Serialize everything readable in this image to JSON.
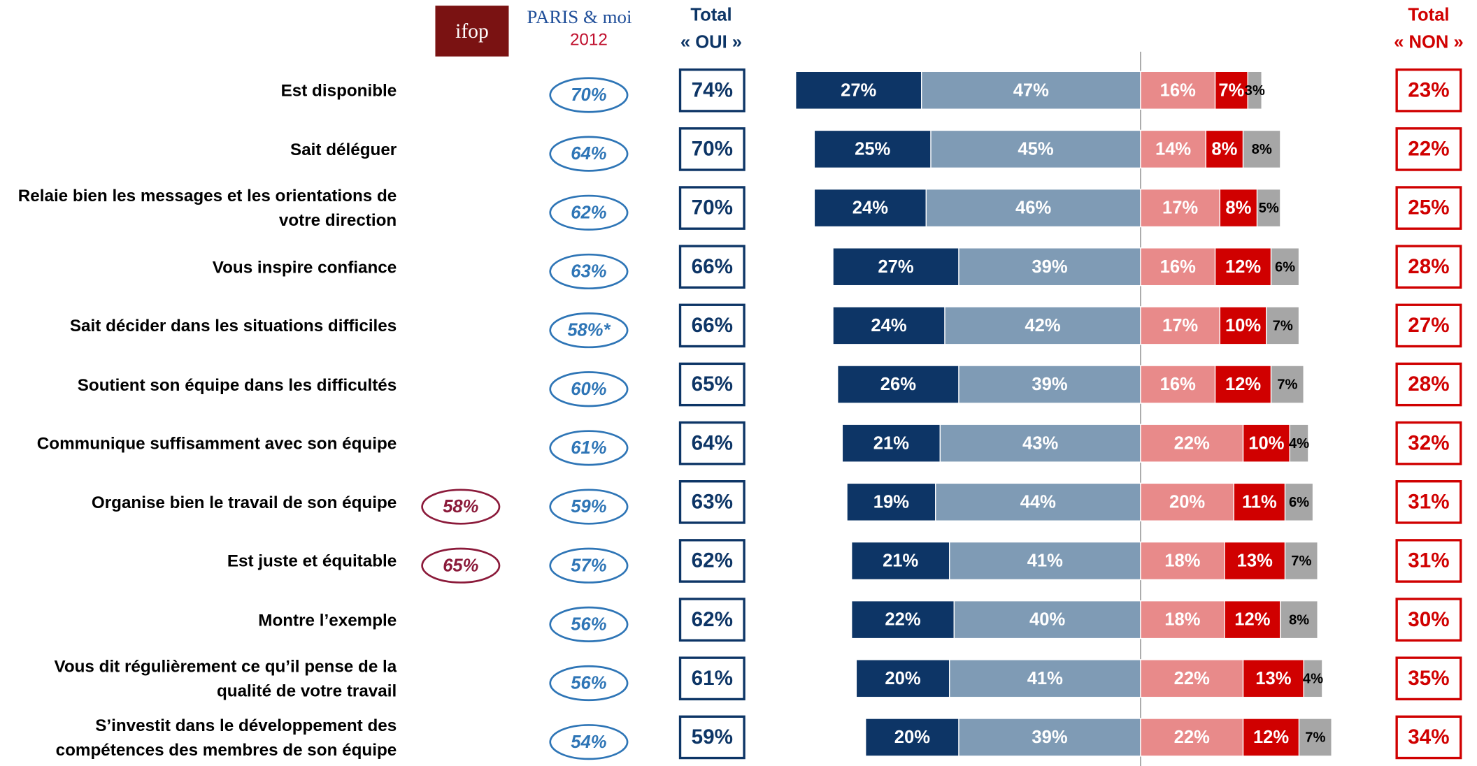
{
  "chart_data": {
    "type": "diverging_bar",
    "logo_ifop": "ifop",
    "logo_paris": "PARIS & moi",
    "logo_year": "2012",
    "total_oui_title": "Total",
    "total_oui_sub": "« OUI »",
    "total_non_title": "Total",
    "total_non_sub": "« NON »",
    "categories": [
      "Est disponible",
      "Sait déléguer",
      "Relaie bien les messages et les orientations de votre direction",
      "Vous inspire confiance",
      "Sait décider dans les situations difficiles",
      "Soutient son équipe dans les difficultés",
      "Communique suffisamment avec son équipe",
      "Organise bien le travail de son équipe",
      "Est juste et équitable",
      "Montre l’exemple",
      "Vous dit régulièrement ce qu’il pense de la qualité de votre travail",
      "S’investit dans le développement des compétences des membres de son équipe"
    ],
    "ifop": {
      "color": "#8b1a3a",
      "values": [
        null,
        null,
        null,
        null,
        null,
        null,
        null,
        58,
        65,
        null,
        null,
        null
      ],
      "value_labels": [
        null,
        null,
        null,
        null,
        null,
        null,
        null,
        "58%",
        "65%",
        null,
        null,
        null
      ]
    },
    "paris_2012": {
      "color": "#2e75b6",
      "values": [
        70,
        64,
        62,
        63,
        58,
        60,
        61,
        59,
        57,
        56,
        56,
        54
      ],
      "value_labels": [
        "70%",
        "64%",
        "62%",
        "63%",
        "58%*",
        "60%",
        "61%",
        "59%",
        "57%",
        "56%",
        "56%",
        "54%"
      ]
    },
    "total_oui": {
      "color": "#0d3566",
      "values": [
        74,
        70,
        70,
        66,
        66,
        65,
        64,
        63,
        62,
        62,
        61,
        59
      ],
      "value_labels": [
        "74%",
        "70%",
        "70%",
        "66%",
        "66%",
        "65%",
        "64%",
        "63%",
        "62%",
        "62%",
        "61%",
        "59%"
      ]
    },
    "total_non": {
      "color": "#d00000",
      "values": [
        23,
        22,
        25,
        28,
        27,
        28,
        32,
        31,
        31,
        30,
        35,
        34
      ],
      "value_labels": [
        "23%",
        "22%",
        "25%",
        "28%",
        "27%",
        "28%",
        "32%",
        "31%",
        "31%",
        "30%",
        "35%",
        "34%"
      ]
    },
    "series": [
      {
        "color": "#0d3566",
        "side": "left",
        "values": [
          27,
          25,
          24,
          27,
          24,
          26,
          21,
          19,
          21,
          22,
          20,
          20
        ],
        "value_labels": [
          "27%",
          "25%",
          "24%",
          "27%",
          "24%",
          "26%",
          "21%",
          "19%",
          "21%",
          "22%",
          "20%",
          "20%"
        ]
      },
      {
        "color": "#7f9bb5",
        "side": "left",
        "values": [
          47,
          45,
          46,
          39,
          42,
          39,
          43,
          44,
          41,
          40,
          41,
          39
        ],
        "value_labels": [
          "47%",
          "45%",
          "46%",
          "39%",
          "42%",
          "39%",
          "43%",
          "44%",
          "41%",
          "40%",
          "41%",
          "39%"
        ]
      },
      {
        "color": "#e88a8a",
        "side": "right",
        "values": [
          16,
          14,
          17,
          16,
          17,
          16,
          22,
          20,
          18,
          18,
          22,
          22
        ],
        "value_labels": [
          "16%",
          "14%",
          "17%",
          "16%",
          "17%",
          "16%",
          "22%",
          "20%",
          "18%",
          "18%",
          "22%",
          "22%"
        ]
      },
      {
        "color": "#d00000",
        "side": "right",
        "values": [
          7,
          8,
          8,
          12,
          10,
          12,
          10,
          11,
          13,
          12,
          13,
          12
        ],
        "value_labels": [
          "7%",
          "8%",
          "8%",
          "12%",
          "10%",
          "12%",
          "10%",
          "11%",
          "13%",
          "12%",
          "13%",
          "12%"
        ]
      },
      {
        "color": "#a6a6a6",
        "side": "right",
        "values": [
          3,
          8,
          5,
          6,
          7,
          7,
          4,
          6,
          7,
          8,
          4,
          7
        ],
        "value_labels": [
          "3%",
          "8%",
          "5%",
          "6%",
          "7%",
          "7%",
          "4%",
          "6%",
          "7%",
          "8%",
          "4%",
          "7%"
        ]
      }
    ]
  }
}
